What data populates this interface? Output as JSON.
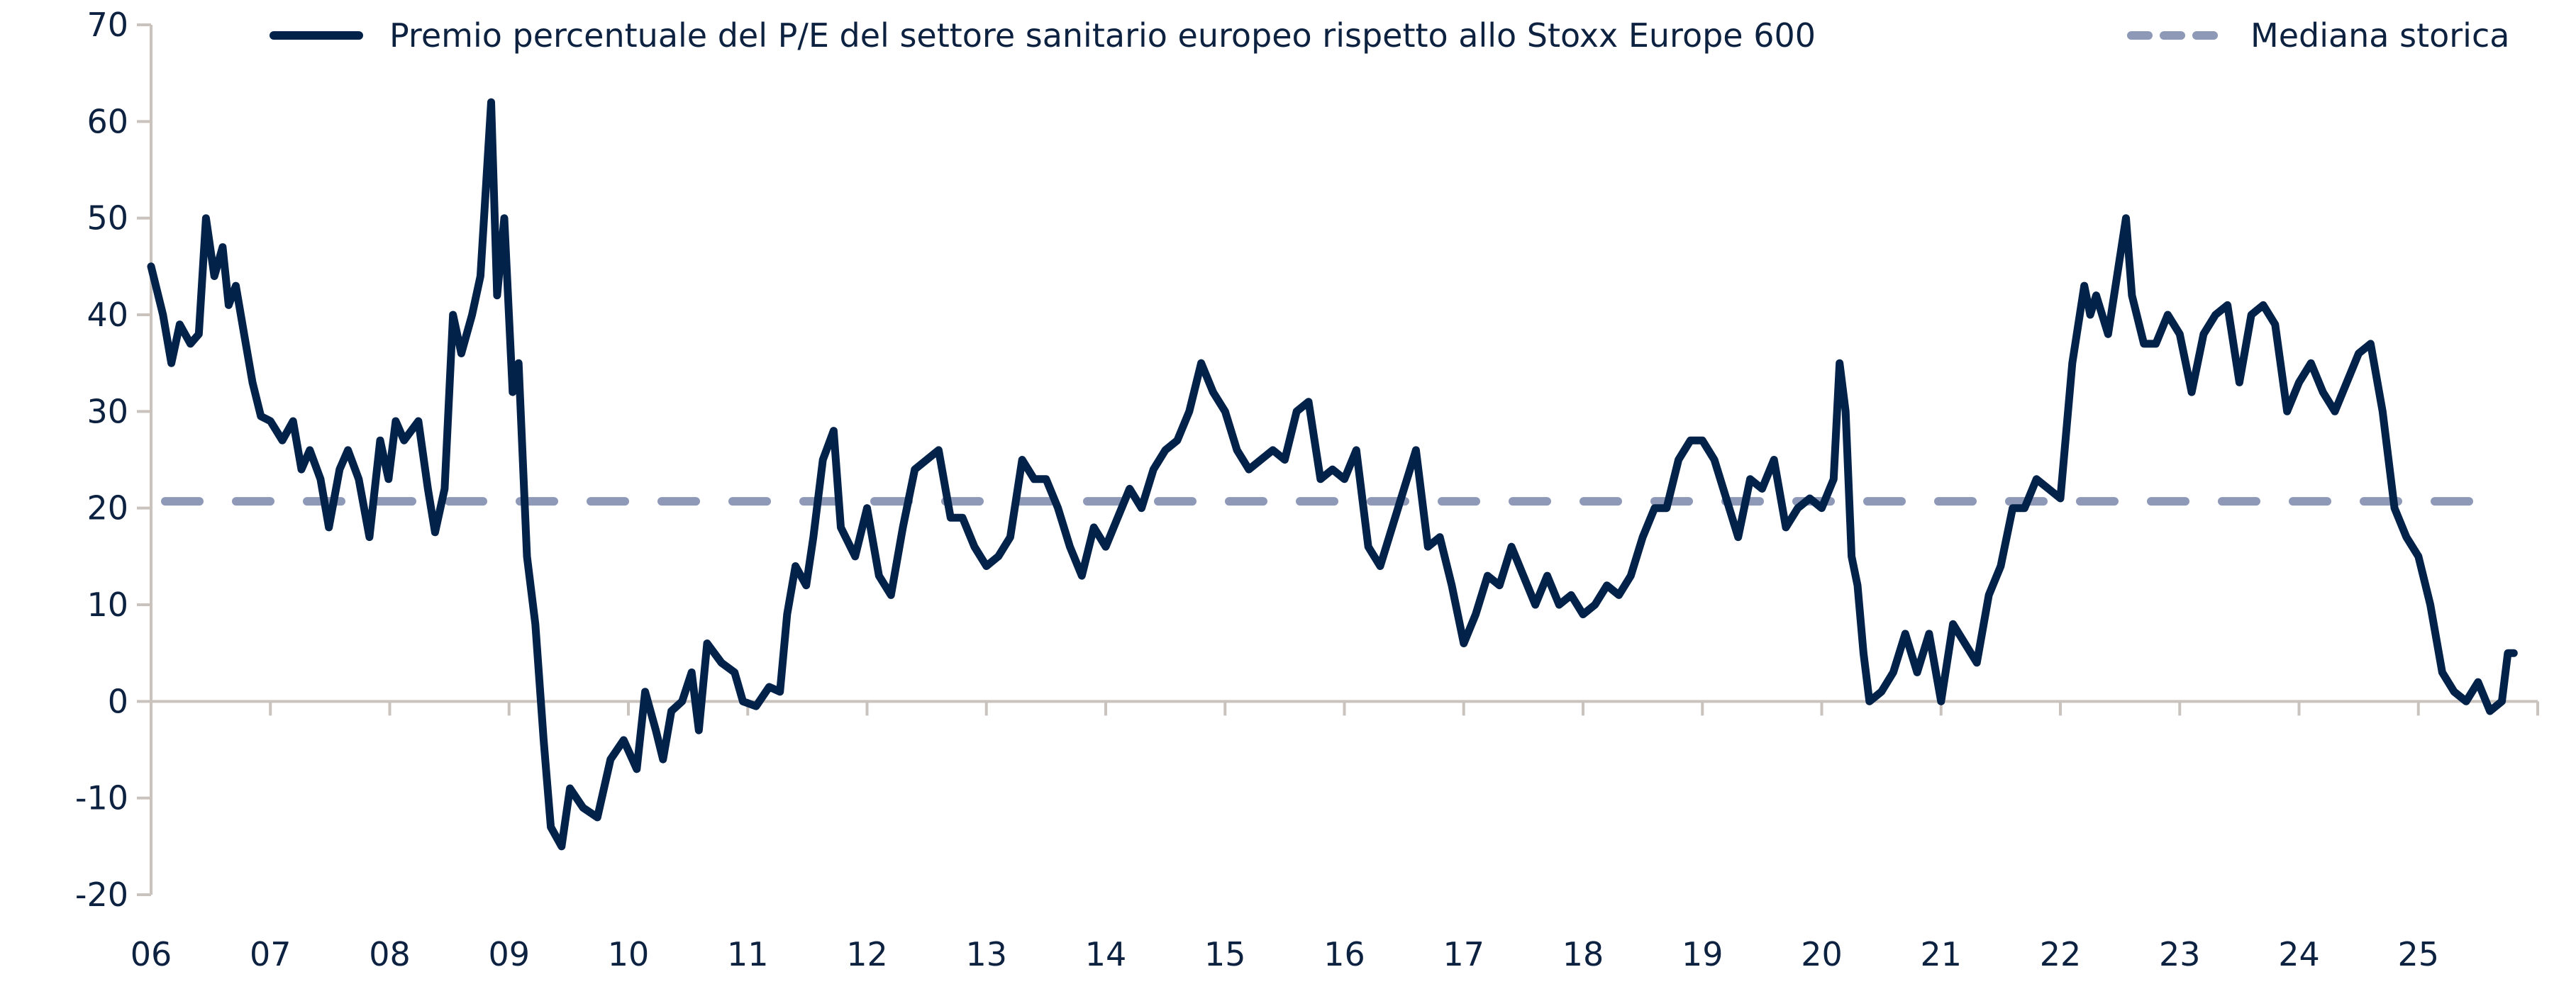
{
  "chart_data": {
    "type": "line",
    "title": "",
    "xlabel": "",
    "ylabel": "",
    "ylim": [
      -20,
      70
    ],
    "xlim": [
      2006,
      2026
    ],
    "yticks": [
      -20,
      -10,
      0,
      10,
      20,
      30,
      40,
      50,
      60,
      70
    ],
    "xtick_labels": [
      "06",
      "07",
      "08",
      "09",
      "10",
      "11",
      "12",
      "13",
      "14",
      "15",
      "16",
      "17",
      "18",
      "19",
      "20",
      "21",
      "22",
      "23",
      "24",
      "25"
    ],
    "xtick_years": [
      2006,
      2007,
      2008,
      2009,
      2010,
      2011,
      2012,
      2013,
      2014,
      2015,
      2016,
      2017,
      2018,
      2019,
      2020,
      2021,
      2022,
      2023,
      2024,
      2025
    ],
    "grid": false,
    "legend_position": "top",
    "colors": {
      "premium": "#03224a",
      "median": "#8e99b8",
      "axis": "#c9c2bd",
      "text": "#0d2240"
    },
    "series": [
      {
        "name": "Premio percentuale del P/E del settore sanitario europeo rispetto allo Stoxx Europe 600",
        "style": "solid",
        "x": [
          2006.0,
          2006.1,
          2006.17,
          2006.24,
          2006.33,
          2006.4,
          2006.46,
          2006.53,
          2006.6,
          2006.65,
          2006.71,
          2006.78,
          2006.85,
          2006.92,
          2007.0,
          2007.1,
          2007.19,
          2007.26,
          2007.33,
          2007.42,
          2007.49,
          2007.58,
          2007.65,
          2007.74,
          2007.83,
          2007.92,
          2007.99,
          2008.05,
          2008.12,
          2008.24,
          2008.32,
          2008.38,
          2008.46,
          2008.53,
          2008.6,
          2008.69,
          2008.76,
          2008.85,
          2008.9,
          2008.96,
          2009.03,
          2009.08,
          2009.15,
          2009.22,
          2009.29,
          2009.35,
          2009.44,
          2009.51,
          2009.62,
          2009.74,
          2009.85,
          2009.96,
          2010.07,
          2010.14,
          2010.23,
          2010.29,
          2010.36,
          2010.45,
          2010.53,
          2010.59,
          2010.66,
          2010.78,
          2010.89,
          2010.96,
          2011.07,
          2011.18,
          2011.27,
          2011.33,
          2011.4,
          2011.49,
          2011.55,
          2011.63,
          2011.72,
          2011.78,
          2011.9,
          2012.0,
          2012.1,
          2012.2,
          2012.3,
          2012.4,
          2012.5,
          2012.6,
          2012.7,
          2012.8,
          2012.9,
          2013.0,
          2013.1,
          2013.2,
          2013.3,
          2013.4,
          2013.5,
          2013.6,
          2013.7,
          2013.8,
          2013.9,
          2014.0,
          2014.1,
          2014.2,
          2014.3,
          2014.4,
          2014.5,
          2014.6,
          2014.7,
          2014.8,
          2014.9,
          2015.0,
          2015.1,
          2015.2,
          2015.3,
          2015.4,
          2015.5,
          2015.6,
          2015.7,
          2015.8,
          2015.9,
          2016.0,
          2016.1,
          2016.2,
          2016.3,
          2016.4,
          2016.5,
          2016.6,
          2016.7,
          2016.8,
          2016.9,
          2017.0,
          2017.1,
          2017.2,
          2017.3,
          2017.4,
          2017.5,
          2017.6,
          2017.7,
          2017.8,
          2017.9,
          2018.0,
          2018.1,
          2018.2,
          2018.3,
          2018.4,
          2018.5,
          2018.6,
          2018.7,
          2018.8,
          2018.9,
          2019.0,
          2019.1,
          2019.2,
          2019.3,
          2019.4,
          2019.5,
          2019.6,
          2019.7,
          2019.8,
          2019.9,
          2020.0,
          2020.1,
          2020.15,
          2020.2,
          2020.25,
          2020.3,
          2020.35,
          2020.4,
          2020.5,
          2020.6,
          2020.7,
          2020.8,
          2020.9,
          2021.0,
          2021.1,
          2021.2,
          2021.3,
          2021.4,
          2021.5,
          2021.6,
          2021.7,
          2021.8,
          2021.9,
          2022.0,
          2022.1,
          2022.2,
          2022.25,
          2022.3,
          2022.4,
          2022.5,
          2022.55,
          2022.6,
          2022.7,
          2022.8,
          2022.9,
          2023.0,
          2023.1,
          2023.2,
          2023.3,
          2023.4,
          2023.5,
          2023.6,
          2023.7,
          2023.8,
          2023.9,
          2024.0,
          2024.1,
          2024.2,
          2024.3,
          2024.4,
          2024.5,
          2024.6,
          2024.7,
          2024.8,
          2024.9,
          2025.0,
          2025.1,
          2025.2,
          2025.3,
          2025.4,
          2025.5,
          2025.6,
          2025.7,
          2025.75,
          2025.8
        ],
        "y": [
          45,
          40,
          35,
          39,
          37,
          38,
          50,
          44,
          47,
          41,
          43,
          38,
          33,
          29.5,
          29,
          27,
          29,
          24,
          26,
          23,
          18,
          24,
          26,
          23,
          17,
          27,
          23,
          29,
          27,
          29,
          22,
          17.5,
          22,
          40,
          36,
          40,
          44,
          62,
          42,
          50,
          32,
          35,
          15,
          8,
          -4,
          -13,
          -15,
          -9,
          -11,
          -12,
          -6,
          -4,
          -7,
          1,
          -3,
          -6,
          -1,
          0,
          3,
          -3,
          6,
          4,
          3,
          0,
          -0.5,
          1.5,
          1,
          9,
          14,
          12,
          17,
          25,
          28,
          18,
          15,
          20,
          13,
          11,
          18,
          24,
          25,
          26,
          19,
          19,
          16,
          14,
          15,
          17,
          25,
          23,
          23,
          20,
          16,
          13,
          18,
          16,
          19,
          22,
          20,
          24,
          26,
          27,
          30,
          35,
          32,
          30,
          26,
          24,
          25,
          26,
          25,
          30,
          31,
          23,
          24,
          23,
          26,
          16,
          14,
          18,
          22,
          26,
          16,
          17,
          12,
          6,
          9,
          13,
          12,
          16,
          13,
          10,
          13,
          10,
          11,
          9,
          10,
          12,
          11,
          13,
          17,
          20,
          20,
          25,
          27,
          27,
          25,
          21,
          17,
          23,
          22,
          25,
          18,
          20,
          21,
          20,
          23,
          35,
          30,
          15,
          12,
          5,
          0,
          1,
          3,
          7,
          3,
          7,
          0,
          8,
          6,
          4,
          11,
          14,
          20,
          20,
          23,
          22,
          21,
          35,
          43,
          40,
          42,
          38,
          46,
          50,
          42,
          37,
          37,
          40,
          38,
          32,
          38,
          40,
          41,
          33,
          40,
          41,
          39,
          30,
          33,
          35,
          32,
          30,
          33,
          36,
          37,
          30,
          20,
          17,
          15,
          10,
          3,
          1,
          0,
          2,
          -1,
          0,
          5,
          5
        ]
      },
      {
        "name": "Mediana storica",
        "style": "dashed",
        "value": 20.7
      }
    ]
  }
}
